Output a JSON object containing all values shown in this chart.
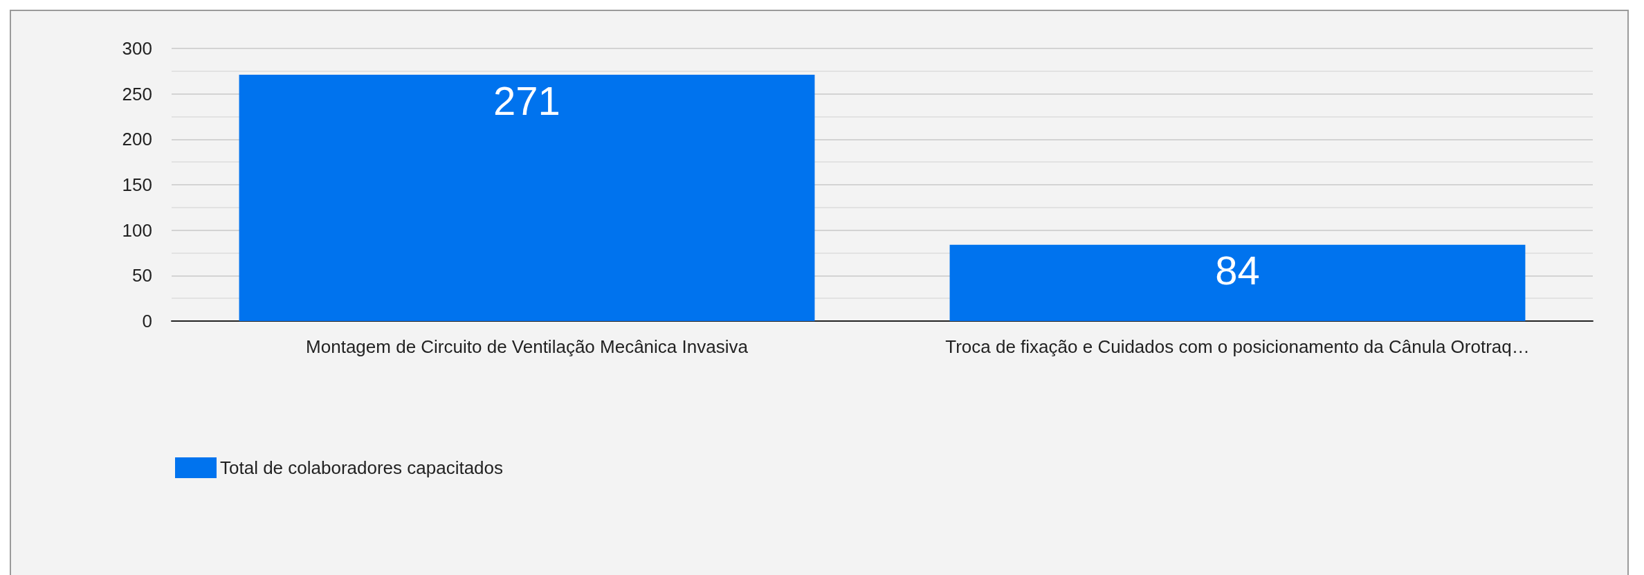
{
  "chart_data": {
    "type": "bar",
    "categories": [
      "Montagem de Circuito de Ventilação Mecânica Invasiva",
      "Troca de fixação e Cuidados com o posicionamento da Cânula Orotraq…"
    ],
    "series": [
      {
        "name": "Total de colaboradores capacitados",
        "color": "#0073ee",
        "values": [
          271,
          84
        ]
      }
    ],
    "ylim": [
      0,
      300
    ],
    "yticks": [
      0,
      50,
      100,
      150,
      200,
      250,
      300
    ],
    "grid": true,
    "legend": "bottom left",
    "data_labels": true
  }
}
